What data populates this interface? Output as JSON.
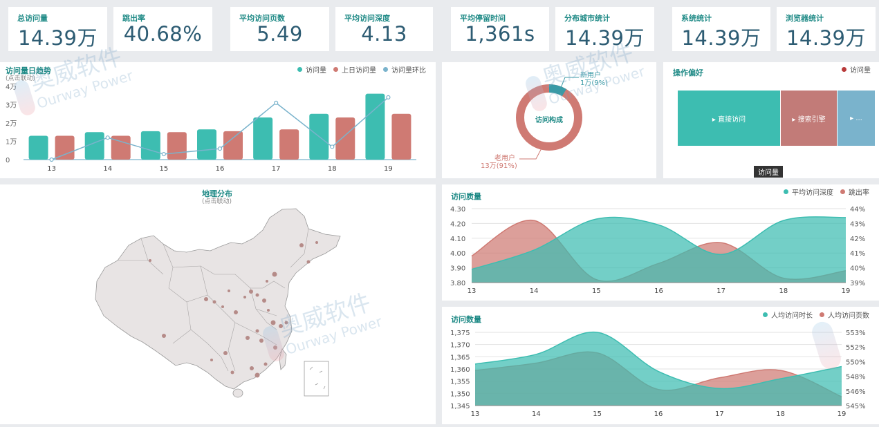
{
  "colors": {
    "teal": "#3dbdb1",
    "red": "#cf7a73",
    "blue": "#7ab3cc",
    "title": "#1f8a86",
    "value": "#2d5c73"
  },
  "kpis": [
    {
      "label": "总访问量",
      "value": "14.39万"
    },
    {
      "label": "跳出率",
      "value": "40.68%"
    },
    {
      "label": "平均访问页数",
      "value": "5.49"
    },
    {
      "label": "平均访问深度",
      "value": "4.13"
    },
    {
      "label": "平均停留时间",
      "value": "1,361s"
    },
    {
      "label": "分布城市统计",
      "value": "14.39万"
    },
    {
      "label": "系统统计",
      "value": "14.39万"
    },
    {
      "label": "浏览器统计",
      "value": "14.39万"
    }
  ],
  "watermark": {
    "cn": "奥威软件",
    "en": "Ourway Power"
  },
  "trend": {
    "title": "访问量日趋势",
    "subtitle": "(点击联动)",
    "legend": [
      "访问量",
      "上日访问量",
      "访问量环比"
    ]
  },
  "composition": {
    "center_label": "访问构成",
    "new_label": "新用户",
    "new_value": "1万(9%)",
    "old_label": "老用户",
    "old_value": "13万(91%)"
  },
  "preference": {
    "title": "操作偏好",
    "legend": "访问量",
    "tiles": [
      "▸ 直接访问",
      "▸ 搜索引擎",
      "▸ ..."
    ],
    "tooltip": "访问量"
  },
  "geo": {
    "title": "地理分布",
    "subtitle": "(点击联动)"
  },
  "quality": {
    "title": "访问质量",
    "legend": [
      "平均访问深度",
      "跳出率"
    ]
  },
  "quantity": {
    "title": "访问数量",
    "legend": [
      "人均访问时长",
      "人均访问页数"
    ]
  },
  "chart_data": [
    {
      "type": "bar",
      "title": "访问量日趋势",
      "categories": [
        "13",
        "14",
        "15",
        "16",
        "17",
        "18",
        "19"
      ],
      "y_ticks": [
        "0",
        "1万",
        "2万",
        "3万",
        "4万"
      ],
      "ylim": [
        0,
        40000
      ],
      "series": [
        {
          "name": "访问量",
          "values": [
            13000,
            15000,
            15500,
            16500,
            23000,
            25000,
            36000
          ]
        },
        {
          "name": "上日访问量",
          "values": [
            13000,
            13000,
            15000,
            15500,
            16500,
            23000,
            25000
          ]
        },
        {
          "name": "访问量环比",
          "type": "line",
          "values": [
            0,
            12000,
            3000,
            6000,
            31000,
            7000,
            34000
          ]
        }
      ]
    },
    {
      "type": "pie",
      "title": "访问构成",
      "series": [
        {
          "name": "新用户",
          "values": [
            9
          ]
        },
        {
          "name": "老用户",
          "values": [
            91
          ]
        }
      ]
    },
    {
      "type": "area",
      "title": "访问质量",
      "categories": [
        "13",
        "14",
        "15",
        "16",
        "17",
        "18",
        "19"
      ],
      "y_left_ticks": [
        "3.80",
        "3.90",
        "4.00",
        "4.10",
        "4.20",
        "4.30"
      ],
      "y_left_lim": [
        3.8,
        4.3
      ],
      "y_right_ticks": [
        "39%",
        "40%",
        "41%",
        "42%",
        "43%",
        "44%"
      ],
      "y_right_lim": [
        39,
        44
      ],
      "series": [
        {
          "name": "平均访问深度",
          "axis": "left",
          "values": [
            3.89,
            4.02,
            4.23,
            4.19,
            3.99,
            4.22,
            4.24
          ]
        },
        {
          "name": "跳出率",
          "axis": "right",
          "values": [
            40.8,
            43.2,
            39.2,
            40.3,
            41.7,
            39.3,
            39.8
          ]
        }
      ]
    },
    {
      "type": "area",
      "title": "访问数量",
      "categories": [
        "13",
        "14",
        "15",
        "16",
        "17",
        "18",
        "19"
      ],
      "y_left_ticks": [
        "1,345",
        "1,350",
        "1,355",
        "1,360",
        "1,365",
        "1,370",
        "1,375"
      ],
      "y_left_lim": [
        1345,
        1375
      ],
      "y_right_ticks": [
        "545%",
        "546%",
        "548%",
        "550%",
        "552%",
        "553%"
      ],
      "series": [
        {
          "name": "人均访问时长",
          "axis": "left",
          "values": [
            1362,
            1366,
            1375,
            1359,
            1352,
            1356,
            1361
          ]
        },
        {
          "name": "人均访问页数",
          "axis": "right",
          "values": [
            549.8,
            550.8,
            552.2,
            547.2,
            548.8,
            549.8,
            546.2
          ]
        }
      ]
    }
  ]
}
